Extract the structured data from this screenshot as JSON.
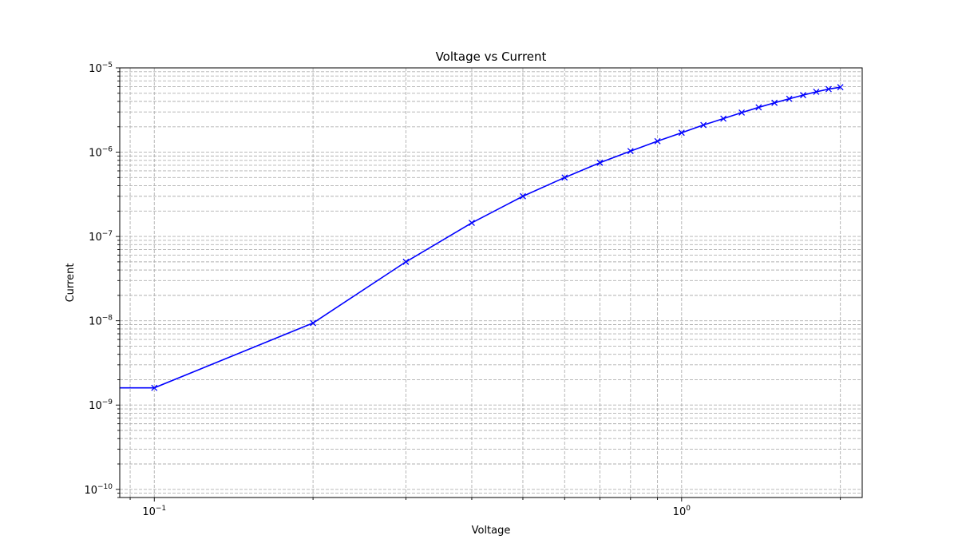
{
  "chart_data": {
    "type": "line",
    "title": "Voltage vs Current",
    "xlabel": "Voltage",
    "ylabel": "Current",
    "xscale": "log",
    "yscale": "log",
    "xlim": [
      0.086,
      2.2
    ],
    "ylim": [
      8e-11,
      1e-05
    ],
    "x_ticks": [
      {
        "value": 0.1,
        "label": "10",
        "exp": "−1"
      },
      {
        "value": 1,
        "label": "10",
        "exp": "0"
      }
    ],
    "y_ticks": [
      {
        "value": 1e-10,
        "label": "10",
        "exp": "−10"
      },
      {
        "value": 1e-09,
        "label": "10",
        "exp": "−9"
      },
      {
        "value": 1e-08,
        "label": "10",
        "exp": "−8"
      },
      {
        "value": 1e-07,
        "label": "10",
        "exp": "−7"
      },
      {
        "value": 1e-06,
        "label": "10",
        "exp": "−6"
      },
      {
        "value": 1e-05,
        "label": "10",
        "exp": "−5"
      }
    ],
    "grid": "both, major and minor, dashed",
    "series": [
      {
        "color": "#0000ff",
        "marker": "x",
        "points": [
          {
            "x": 0.0,
            "y": 1.6e-09
          },
          {
            "x": 0.1,
            "y": 1.6e-09
          },
          {
            "x": 0.2,
            "y": 9.4e-09
          },
          {
            "x": 0.3,
            "y": 5e-08
          },
          {
            "x": 0.4,
            "y": 1.45e-07
          },
          {
            "x": 0.5,
            "y": 3e-07
          },
          {
            "x": 0.6,
            "y": 5e-07
          },
          {
            "x": 0.7,
            "y": 7.5e-07
          },
          {
            "x": 0.8,
            "y": 1.03e-06
          },
          {
            "x": 0.9,
            "y": 1.35e-06
          },
          {
            "x": 1.0,
            "y": 1.7e-06
          },
          {
            "x": 1.1,
            "y": 2.1e-06
          },
          {
            "x": 1.2,
            "y": 2.5e-06
          },
          {
            "x": 1.3,
            "y": 2.95e-06
          },
          {
            "x": 1.4,
            "y": 3.4e-06
          },
          {
            "x": 1.5,
            "y": 3.85e-06
          },
          {
            "x": 1.6,
            "y": 4.3e-06
          },
          {
            "x": 1.7,
            "y": 4.75e-06
          },
          {
            "x": 1.8,
            "y": 5.2e-06
          },
          {
            "x": 1.9,
            "y": 5.6e-06
          },
          {
            "x": 2.0,
            "y": 5.9e-06
          }
        ]
      }
    ]
  }
}
